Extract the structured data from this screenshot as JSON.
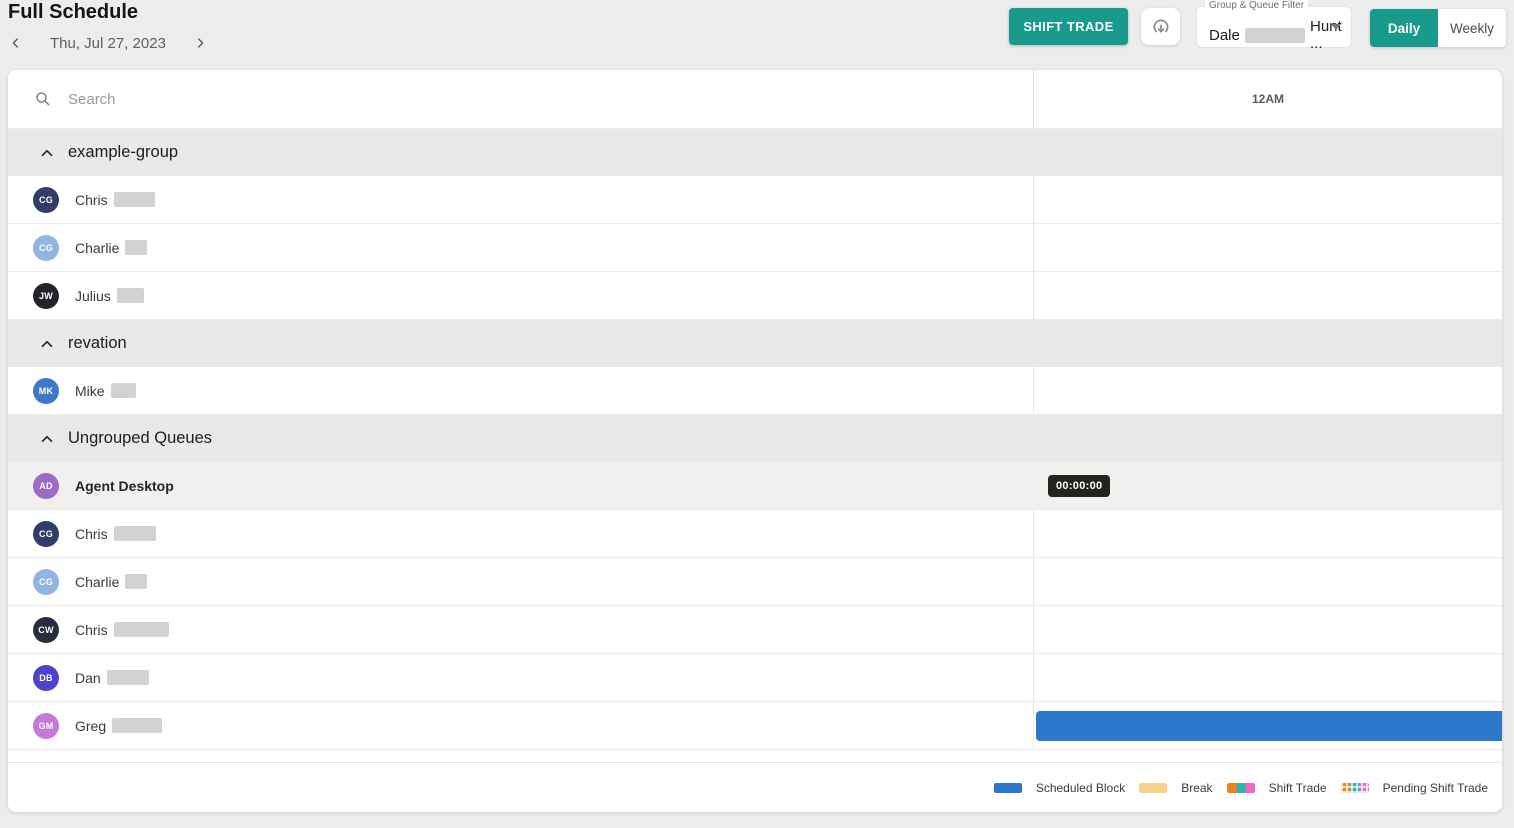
{
  "app": {
    "title": "Full Schedule"
  },
  "date_nav": {
    "current_date": "Thu, Jul 27, 2023"
  },
  "toolbar": {
    "shift_trade_button": "SHIFT TRADE",
    "filter": {
      "label": "Group & Queue Filter",
      "value_prefix": "Dale",
      "value_suffix": "Hunt ...",
      "redacted_width": 70
    },
    "view_toggle": {
      "daily": "Daily",
      "weekly": "Weekly",
      "active": "Daily"
    }
  },
  "colors": {
    "accent_teal": "#189b8c",
    "scheduled_block": "#2b77ca",
    "break": "#f7d289",
    "trade_orange": "#f08018",
    "trade_teal": "#2ab5ac",
    "trade_pink": "#ee66c6",
    "badge_bg": "#24231d"
  },
  "schedule": {
    "search_placeholder": "Search",
    "time_header": "12AM",
    "groups": [
      {
        "name": "example-group",
        "rows": [
          {
            "initials": "CG",
            "avatar_color": "#2e3e69",
            "name": "Chris",
            "redacted_width": 41
          },
          {
            "initials": "CG",
            "avatar_color": "#92b4e3",
            "name": "Charlie",
            "redacted_width": 22
          },
          {
            "initials": "JW",
            "avatar_color": "#23242b",
            "name": "Julius",
            "redacted_width": 27
          }
        ]
      },
      {
        "name": "revation",
        "rows": [
          {
            "initials": "MK",
            "avatar_color": "#3d78c9",
            "name": "Mike",
            "redacted_width": 25
          }
        ]
      },
      {
        "name": "Ungrouped Queues",
        "rows": [
          {
            "initials": "AD",
            "avatar_color": "#9b6cc6",
            "name": "Agent Desktop",
            "highlighted": true,
            "badge": "00:00:00"
          },
          {
            "initials": "CG",
            "avatar_color": "#2e3e69",
            "name": "Chris",
            "redacted_width": 42
          },
          {
            "initials": "CG",
            "avatar_color": "#92b4e3",
            "name": "Charlie",
            "redacted_width": 22
          },
          {
            "initials": "CW",
            "avatar_color": "#272c3e",
            "name": "Chris",
            "redacted_width": 55
          },
          {
            "initials": "DB",
            "avatar_color": "#4b42cd",
            "name": "Dan",
            "redacted_width": 42
          },
          {
            "initials": "GM",
            "avatar_color": "#c678d8",
            "name": "Greg",
            "redacted_width": 50,
            "bar": {
              "type": "scheduled-block",
              "color": "#2b77ca"
            }
          }
        ]
      }
    ]
  },
  "legend": [
    {
      "label": "Scheduled Block",
      "pattern": "solid",
      "colors": [
        "#2b77ca"
      ]
    },
    {
      "label": "Break",
      "pattern": "solid",
      "colors": [
        "#f7d289"
      ]
    },
    {
      "label": "Shift Trade",
      "pattern": "segments",
      "colors": [
        "#f08018",
        "#2ab5ac",
        "#ee66c6"
      ]
    },
    {
      "label": "Pending Shift Trade",
      "pattern": "segments-dashed",
      "colors": [
        "#f08018",
        "#2ab5ac",
        "#ee66c6"
      ]
    }
  ]
}
